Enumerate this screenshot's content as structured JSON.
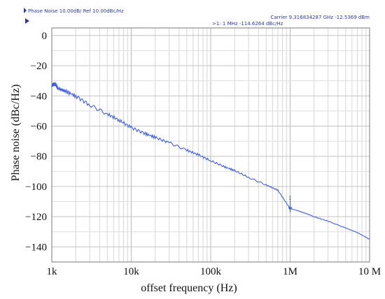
{
  "header": {
    "left_label": "Phase Noise 10.00dB/ Ref 10.00dBc/Hz",
    "carrier_label": "Carrier 9.316834287 GHz  -12.5369 dBm",
    "marker_readout": ">1:  1 MHz  -114.6264 dBc/Hz",
    "marker_number": "1",
    "accent_color": "#2b3aa8"
  },
  "chart_data": {
    "type": "line",
    "xscale": "log",
    "xlim": [
      1000,
      10000000
    ],
    "ylim": [
      -150,
      5
    ],
    "grid": true,
    "xlabel": "offset frequency (Hz)",
    "ylabel": "Phase noise (dBc/Hz)",
    "x_tick_values": [
      1000,
      10000,
      100000,
      1000000,
      10000000
    ],
    "x_tick_labels": [
      "1k",
      "10k",
      "100k",
      "1M",
      "10 M"
    ],
    "y_tick_values": [
      0,
      -20,
      -40,
      -60,
      -80,
      -100,
      -120,
      -140
    ],
    "y_tick_labels": [
      "0",
      "−20",
      "−40",
      "−60",
      "−80",
      "−100",
      "−120",
      "−140"
    ],
    "series": [
      {
        "color": "#3e5ee6",
        "x": [
          1000,
          1100,
          1200,
          1500,
          2000,
          3000,
          5000,
          7000,
          10000,
          15000,
          20000,
          30000,
          50000,
          70000,
          100000,
          150000,
          200000,
          300000,
          500000,
          700000,
          1000000,
          2000000,
          3000000,
          5000000,
          7000000,
          10000000
        ],
        "y": [
          -33,
          -32,
          -35,
          -37,
          -40,
          -46,
          -52,
          -56,
          -61,
          -65,
          -67.5,
          -71,
          -76,
          -79,
          -83,
          -87,
          -89.5,
          -94,
          -99,
          -102.5,
          -114.6,
          -120,
          -123,
          -127.5,
          -130.5,
          -135
        ]
      }
    ],
    "marker": {
      "label": "1",
      "x": 1000000,
      "y": -114.6264
    }
  }
}
